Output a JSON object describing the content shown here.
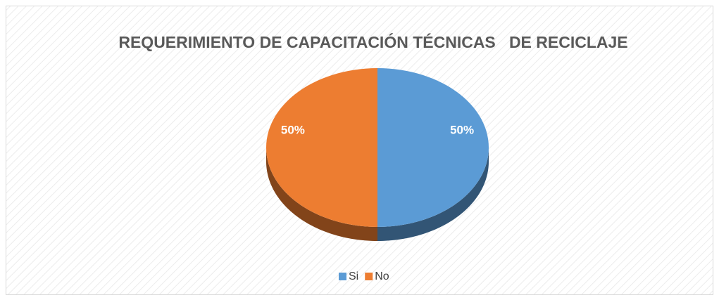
{
  "chart_data": {
    "type": "pie",
    "title": "REQUERIMIENTO DE CAPACITACIÓN TÉCNICAS   DE RECICLAJE",
    "categories": [
      "Si",
      "No"
    ],
    "values": [
      50,
      50
    ],
    "value_labels": [
      "50%",
      "50%"
    ],
    "colors": [
      "#5b9bd5",
      "#ed7d31"
    ],
    "legend": "bottom"
  }
}
